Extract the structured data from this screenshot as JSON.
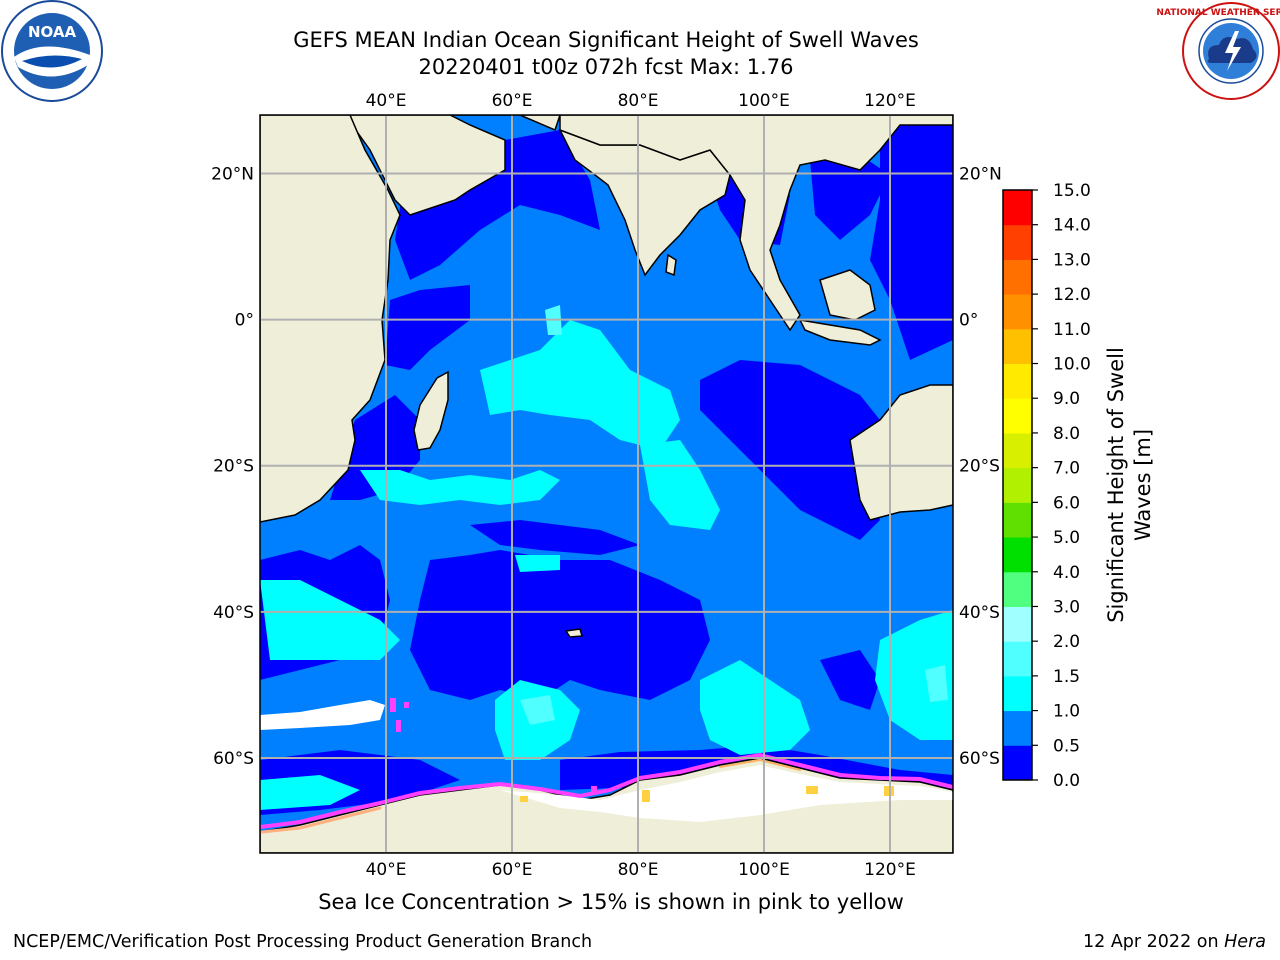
{
  "title": {
    "line1": "GEFS MEAN Indian Ocean Significant Height of Swell Waves",
    "line2": "20220401 t00z 072h fcst   Max: 1.76"
  },
  "map": {
    "lon_ticks": [
      "40°E",
      "60°E",
      "80°E",
      "100°E",
      "120°E"
    ],
    "lat_ticks": [
      "20°N",
      "0°",
      "20°S",
      "40°S",
      "60°S"
    ],
    "lon_range": [
      20,
      130
    ],
    "lat_range": [
      -73,
      28
    ],
    "gridlines": true
  },
  "colorbar": {
    "label_line1": "Significant Height of Swell",
    "label_line2": "Waves [m]",
    "ticks": [
      "0.0",
      "0.5",
      "1.0",
      "1.5",
      "2.0",
      "3.0",
      "4.0",
      "5.0",
      "6.0",
      "7.0",
      "8.0",
      "9.0",
      "10.0",
      "11.0",
      "12.0",
      "13.0",
      "14.0",
      "15.0"
    ],
    "colors": [
      "#0000ff",
      "#0080ff",
      "#00ffff",
      "#50ffff",
      "#a0ffff",
      "#50ff80",
      "#00e000",
      "#60e000",
      "#b0f000",
      "#d8f000",
      "#ffff00",
      "#ffea00",
      "#ffc000",
      "#ff9000",
      "#ff7000",
      "#ff4000",
      "#ff0000"
    ]
  },
  "caption": "Sea Ice Concentration > 15% is shown in pink to yellow",
  "footer": {
    "left": "NCEP/EMC/Verification Post Processing Product Generation Branch",
    "right_prefix": "12 Apr 2022 on ",
    "right_italic": "Hera"
  },
  "logos": {
    "noaa_text": "NOAA",
    "nws_text": "NATIONAL WEATHER SERVICE"
  }
}
